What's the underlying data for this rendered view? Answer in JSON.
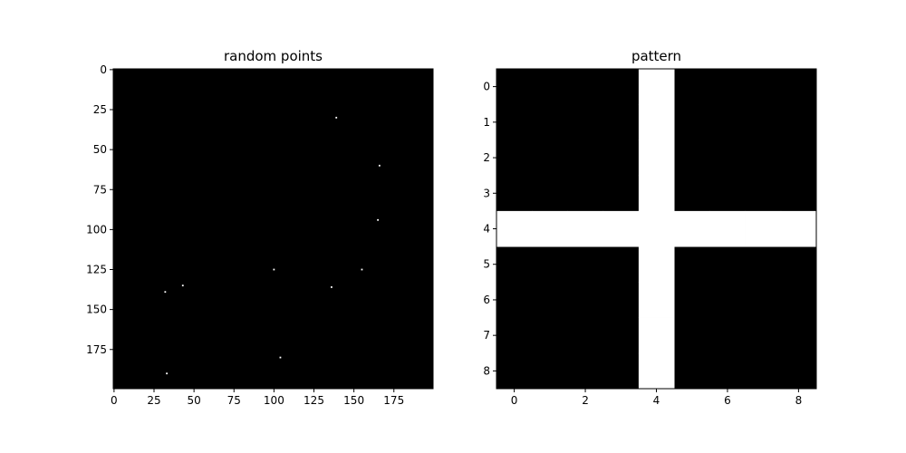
{
  "chart_data": [
    {
      "type": "heatmap",
      "title": "random points",
      "colormap": "gray",
      "grid": false,
      "image_shape": [
        200,
        200
      ],
      "xlim": [
        -0.5,
        199.5
      ],
      "ylim": [
        199.5,
        -0.5
      ],
      "xticks": [
        0,
        25,
        50,
        75,
        100,
        125,
        150,
        175
      ],
      "yticks": [
        0,
        25,
        50,
        75,
        100,
        125,
        150,
        175
      ],
      "background_value": 0,
      "points": [
        {
          "x": 139,
          "y": 30
        },
        {
          "x": 166,
          "y": 60
        },
        {
          "x": 165,
          "y": 94
        },
        {
          "x": 100,
          "y": 125
        },
        {
          "x": 155,
          "y": 125
        },
        {
          "x": 43,
          "y": 135
        },
        {
          "x": 136,
          "y": 136
        },
        {
          "x": 32,
          "y": 139
        },
        {
          "x": 104,
          "y": 180
        },
        {
          "x": 33,
          "y": 190
        }
      ]
    },
    {
      "type": "heatmap",
      "title": "pattern",
      "colormap": "gray",
      "grid": false,
      "image_shape": [
        9,
        9
      ],
      "xlim": [
        -0.5,
        8.5
      ],
      "ylim": [
        8.5,
        -0.5
      ],
      "xticks": [
        0,
        2,
        4,
        6,
        8
      ],
      "yticks": [
        0,
        1,
        2,
        3,
        4,
        5,
        6,
        7,
        8
      ],
      "matrix": [
        [
          0,
          0,
          0,
          0,
          1,
          0,
          0,
          0,
          0
        ],
        [
          0,
          0,
          0,
          0,
          1,
          0,
          0,
          0,
          0
        ],
        [
          0,
          0,
          0,
          0,
          1,
          0,
          0,
          0,
          0
        ],
        [
          0,
          0,
          0,
          0,
          1,
          0,
          0,
          0,
          0
        ],
        [
          1,
          1,
          1,
          1,
          1,
          1,
          1,
          1,
          1
        ],
        [
          0,
          0,
          0,
          0,
          1,
          0,
          0,
          0,
          0
        ],
        [
          0,
          0,
          0,
          0,
          1,
          0,
          0,
          0,
          0
        ],
        [
          0,
          0,
          0,
          0,
          1,
          0,
          0,
          0,
          0
        ],
        [
          0,
          0,
          0,
          0,
          1,
          0,
          0,
          0,
          0
        ]
      ]
    }
  ],
  "colors": {
    "low": "#000000",
    "high": "#ffffff"
  }
}
